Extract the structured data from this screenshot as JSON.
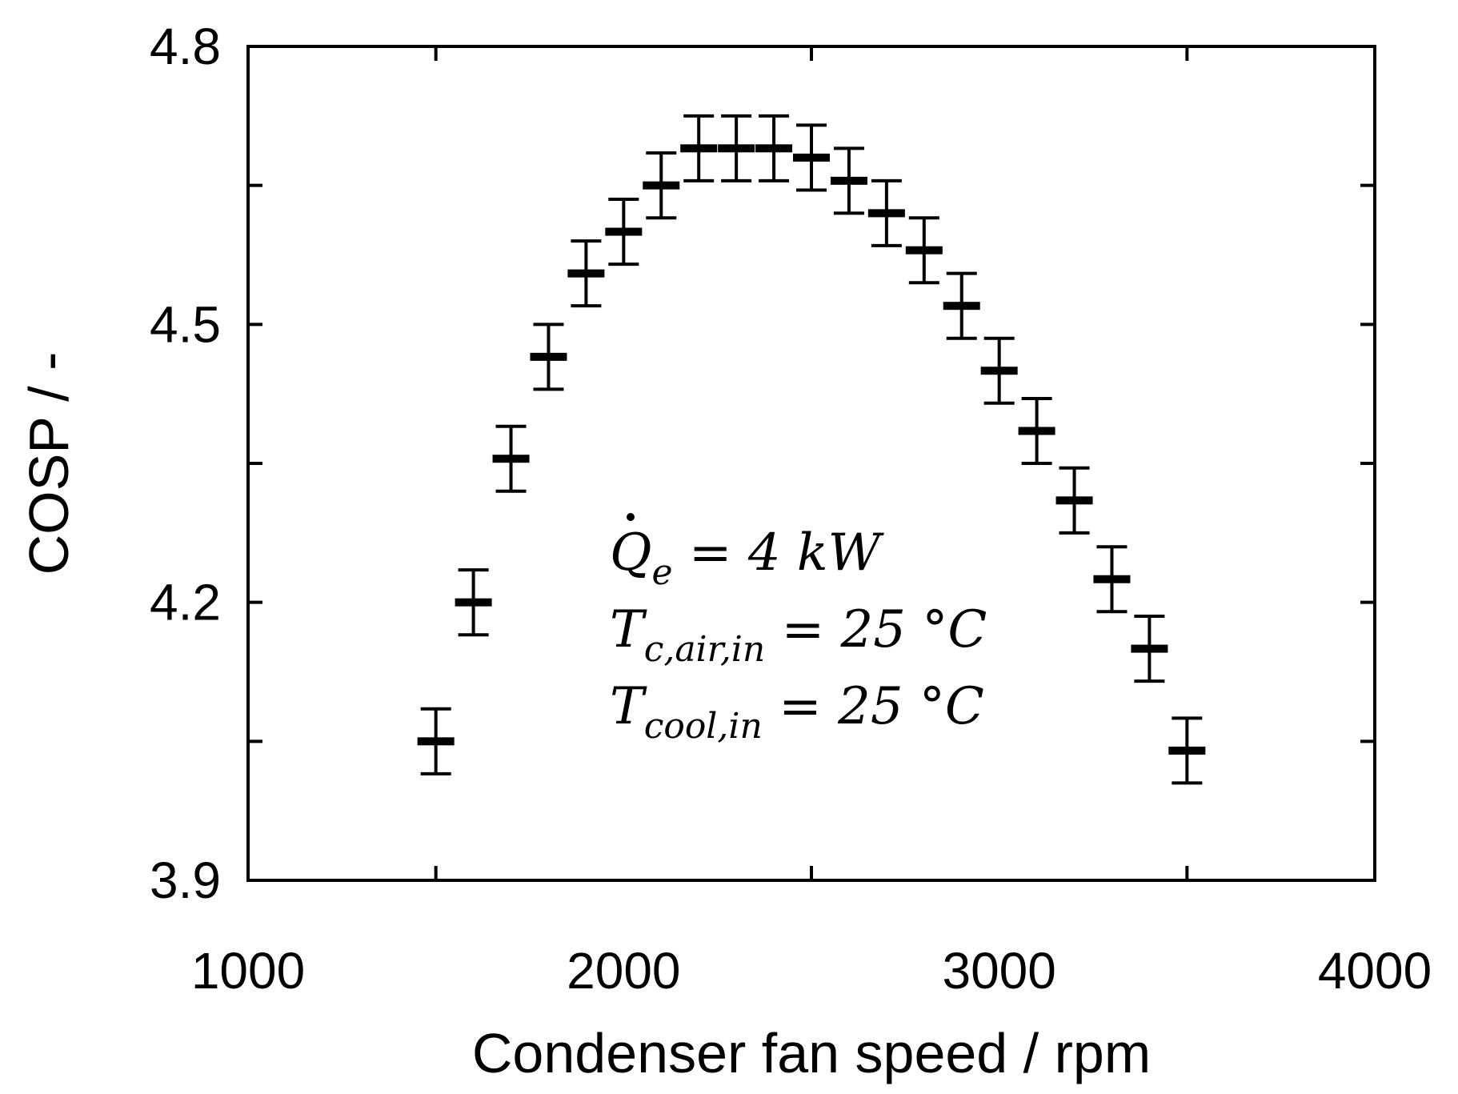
{
  "chart_data": {
    "type": "scatter",
    "title": "",
    "xlabel": "Condenser fan speed / rpm",
    "ylabel": "COSP / -",
    "xlim": [
      1000,
      4000
    ],
    "ylim": [
      3.9,
      4.8
    ],
    "x_ticks": [
      1000,
      2000,
      3000,
      4000
    ],
    "y_ticks": [
      3.9,
      4.2,
      4.5,
      4.8
    ],
    "x_tick_labels": [
      "1000",
      "2000",
      "3000",
      "4000"
    ],
    "y_tick_labels": [
      "3.9",
      "4.2",
      "4.5",
      "4.8"
    ],
    "y_minor_ticks": [
      4.05,
      4.35,
      4.65
    ],
    "x_minor_ticks": [
      1500,
      2500,
      3500
    ],
    "grid": false,
    "legend": "none",
    "error_bar_half_width": 0.035,
    "marker_color": "#000000",
    "points": [
      {
        "x": 1500,
        "y": 4.05
      },
      {
        "x": 1600,
        "y": 4.2
      },
      {
        "x": 1700,
        "y": 4.355
      },
      {
        "x": 1800,
        "y": 4.465
      },
      {
        "x": 1900,
        "y": 4.555
      },
      {
        "x": 2000,
        "y": 4.6
      },
      {
        "x": 2100,
        "y": 4.65
      },
      {
        "x": 2200,
        "y": 4.69
      },
      {
        "x": 2300,
        "y": 4.69
      },
      {
        "x": 2400,
        "y": 4.69
      },
      {
        "x": 2500,
        "y": 4.68
      },
      {
        "x": 2600,
        "y": 4.655
      },
      {
        "x": 2700,
        "y": 4.62
      },
      {
        "x": 2800,
        "y": 4.58
      },
      {
        "x": 2900,
        "y": 4.52
      },
      {
        "x": 3000,
        "y": 4.45
      },
      {
        "x": 3100,
        "y": 4.385
      },
      {
        "x": 3200,
        "y": 4.31
      },
      {
        "x": 3300,
        "y": 4.225
      },
      {
        "x": 3400,
        "y": 4.15
      },
      {
        "x": 3500,
        "y": 4.04
      }
    ],
    "annotations": [
      {
        "symbol": "Q",
        "sub": "e",
        "rest": " = 4 kW"
      },
      {
        "symbol": "T",
        "sub": "c,air,in",
        "rest": " = 25 °C"
      },
      {
        "symbol": "T",
        "sub": "cool,in",
        "rest": " = 25 °C"
      }
    ]
  }
}
